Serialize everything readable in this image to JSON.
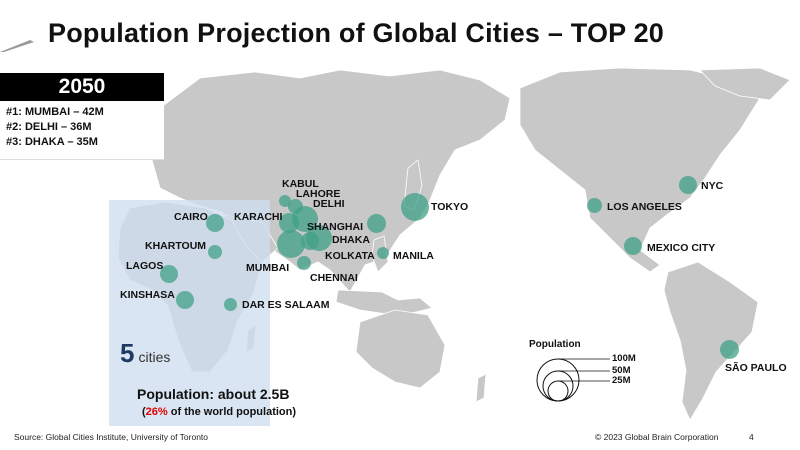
{
  "title": "Population Projection of Global Cities – TOP 20",
  "year_box": {
    "year": "2050",
    "ranks": [
      "#1: MUMBAI – 42M",
      "#2: DELHI – 36M",
      "#3: DHAKA – 35M"
    ]
  },
  "cities": [
    {
      "name": "KABUL"
    },
    {
      "name": "LAHORE"
    },
    {
      "name": "DELHI"
    },
    {
      "name": "KARACHI"
    },
    {
      "name": "SHANGHAI"
    },
    {
      "name": "DHAKA"
    },
    {
      "name": "KOLKATA"
    },
    {
      "name": "MANILA"
    },
    {
      "name": "MUMBAI"
    },
    {
      "name": "CHENNAI"
    },
    {
      "name": "TOKYO"
    },
    {
      "name": "CAIRO"
    },
    {
      "name": "KHARTOUM"
    },
    {
      "name": "LAGOS"
    },
    {
      "name": "KINSHASA"
    },
    {
      "name": "DAR ES SALAAM"
    },
    {
      "name": "NYC"
    },
    {
      "name": "LOS ANGELES"
    },
    {
      "name": "MEXICO CITY"
    },
    {
      "name": "SÃO PAULO"
    }
  ],
  "africa": {
    "count": "5",
    "unit": "cities",
    "population": "Population: about 2.5B",
    "share_pct": "26%",
    "share_text": "of the world population"
  },
  "legend": {
    "title": "Population",
    "labels": [
      "100M",
      "50M",
      "25M"
    ]
  },
  "footer": {
    "source": "Source: Global Cities Institute, University of Toronto",
    "copyright": "© 2023 Global Brain Corporation",
    "page": "4"
  },
  "colors": {
    "land": "#c8c8c8",
    "bubble": "#40a088",
    "highlight_box": "#cedef0",
    "accent_red": "#e00000"
  }
}
